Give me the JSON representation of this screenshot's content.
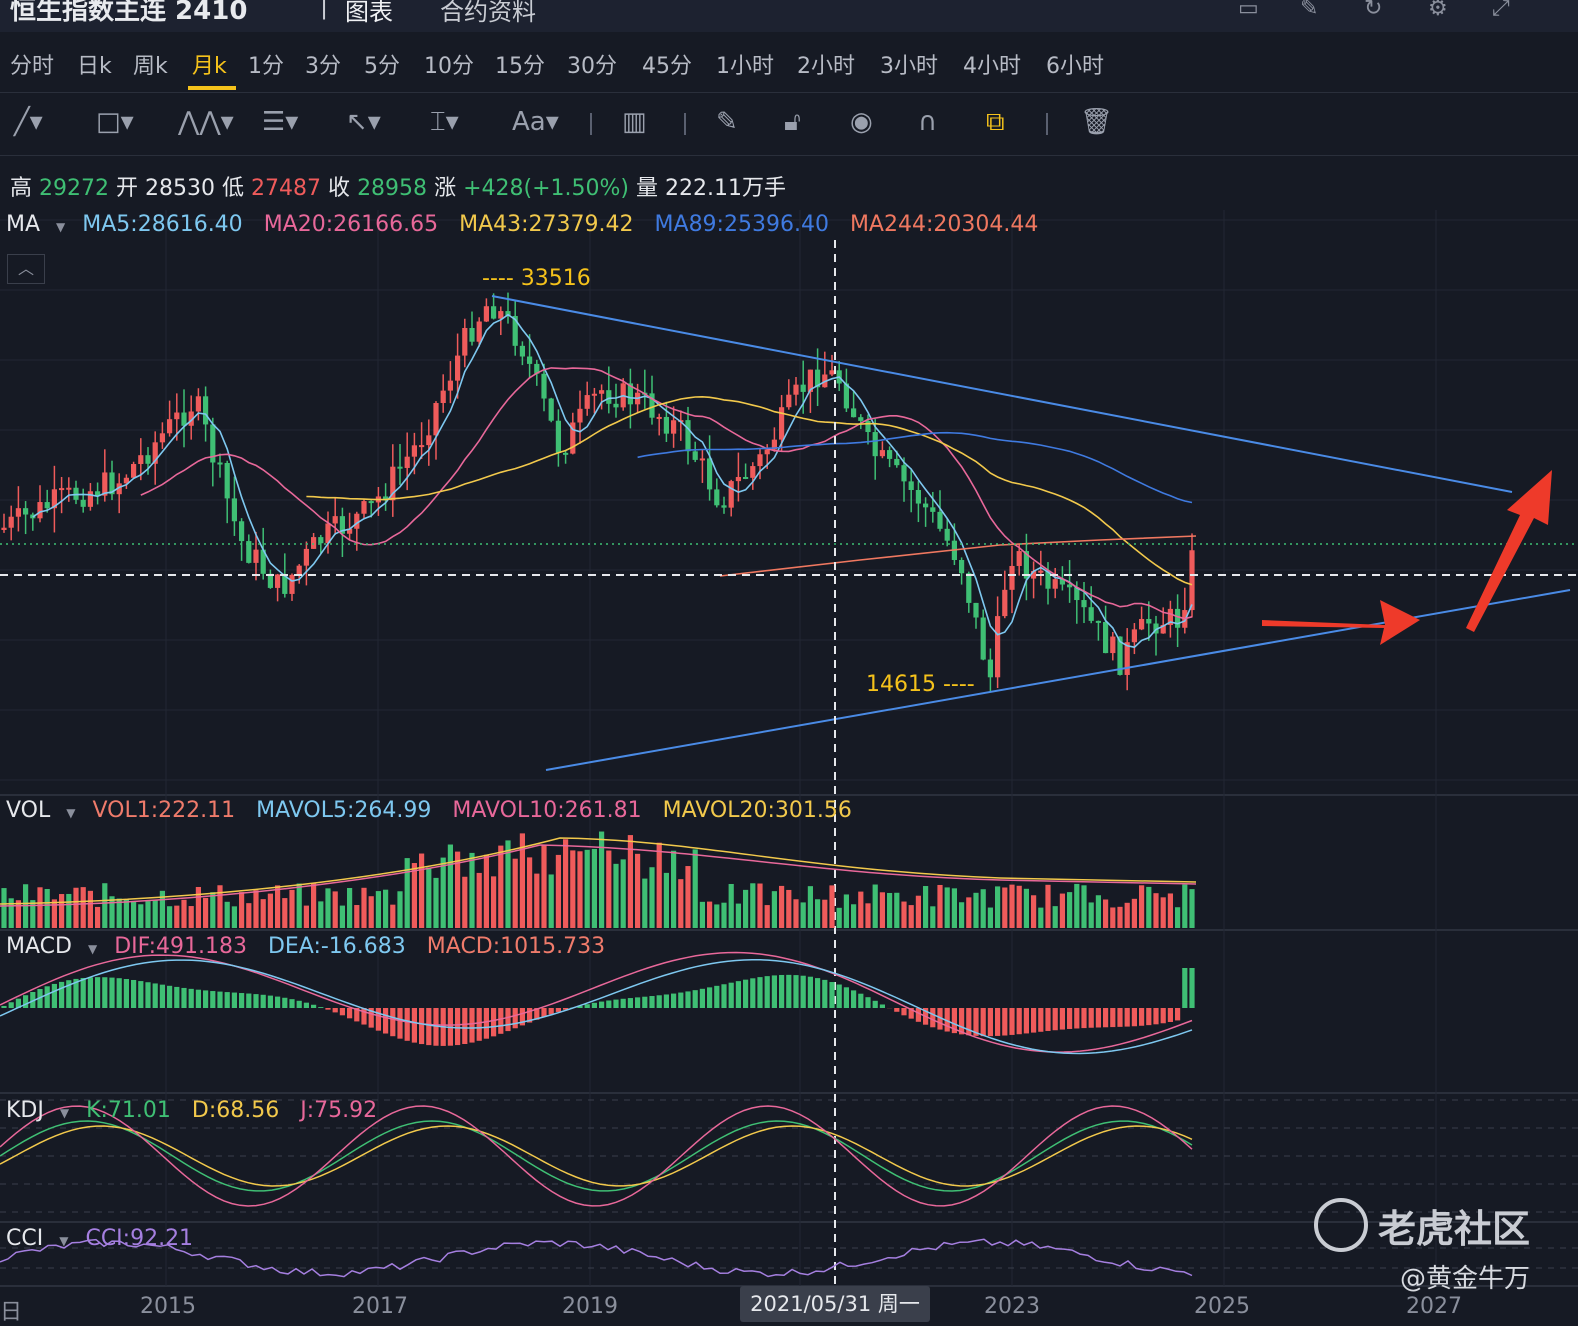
{
  "header": {
    "title": "恒生指数主连 2410",
    "tabs": [
      "图表",
      "合约资料"
    ],
    "icons": [
      "monitor-icon",
      "edit-icon",
      "refresh-icon",
      "settings-icon",
      "expand-icon"
    ]
  },
  "periods": {
    "items": [
      "分时",
      "日k",
      "周k",
      "月k",
      "1分",
      "3分",
      "5分",
      "10分",
      "15分",
      "30分",
      "45分",
      "1小时",
      "2小时",
      "3小时",
      "4小时",
      "6小时"
    ],
    "active": "月k"
  },
  "tools": [
    "line-tool-icon",
    "rect-tool-icon",
    "pattern-tool-icon",
    "fib-tool-icon",
    "arrow-tool-icon",
    "measure-tool-icon",
    "text-tool-icon",
    "bar-tool-icon",
    "pen-icon",
    "lock-icon",
    "eye-icon",
    "magnet-icon",
    "layers-icon",
    "trash-icon"
  ],
  "stats": {
    "high_label": "高",
    "high": "29272",
    "open_label": "开",
    "open": "28530",
    "low_label": "低",
    "low": "27487",
    "close_label": "收",
    "close": "28958",
    "change_label": "涨",
    "change": "+428(+1.50%)",
    "volume_label": "量",
    "volume": "222.11万手"
  },
  "ma_legend": {
    "name": "MA",
    "ma5": "MA5:28616.40",
    "ma20": "MA20:26166.65",
    "ma43": "MA43:27379.42",
    "ma89": "MA89:25396.40",
    "ma244": "MA244:20304.44"
  },
  "annotations": {
    "high_marker": "---- 33516",
    "low_marker": "14615 ----"
  },
  "vol_legend": {
    "name": "VOL",
    "vol1": "VOL1:222.11",
    "mavol5": "MAVOL5:264.99",
    "mavol10": "MAVOL10:261.81",
    "mavol20": "MAVOL20:301.56"
  },
  "macd_legend": {
    "name": "MACD",
    "dif": "DIF:491.183",
    "dea": "DEA:-16.683",
    "macd": "MACD:1015.733"
  },
  "kdj_legend": {
    "name": "KDJ",
    "k": "K:71.01",
    "d": "D:68.56",
    "j": "J:75.92"
  },
  "cci_legend": {
    "name": "CCI",
    "cci": "CCI:92.21"
  },
  "x_axis": {
    "first": "日",
    "labels": [
      "2015",
      "2017",
      "2019",
      "2021/05/31 周一",
      "2023",
      "2025",
      "2027"
    ]
  },
  "watermark": {
    "brand": "老虎社区",
    "author": "@黄金牛万"
  },
  "colors": {
    "up": "#ef5b5b",
    "down": "#3fbf74",
    "ma5": "#7ec8f0",
    "ma20": "#e8689a",
    "ma43": "#f2c94c",
    "ma89": "#3f7ae0",
    "ma244": "#f07860",
    "accent": "#f5c21b"
  },
  "chart_data": {
    "type": "line",
    "note_series": "monthly candlestick approximation",
    "x": [
      "2015",
      "2017",
      "2019",
      "2021",
      "2023",
      "2025"
    ],
    "series": [
      {
        "name": "MA5",
        "values": [
          24000,
          23000,
          27500,
          28500,
          19000,
          28616
        ]
      }
    ]
  }
}
